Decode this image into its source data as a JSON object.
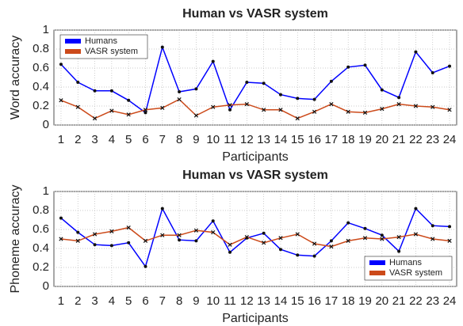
{
  "chart_data": [
    {
      "type": "line",
      "title": "Human vs VASR system",
      "xlabel": "Participants",
      "ylabel": "Word accuracy",
      "x": [
        1,
        2,
        3,
        4,
        5,
        6,
        7,
        8,
        9,
        10,
        11,
        12,
        13,
        14,
        15,
        16,
        17,
        18,
        19,
        20,
        21,
        22,
        23,
        24
      ],
      "xlim": [
        0.58,
        24.42
      ],
      "xticks": [
        1,
        2,
        3,
        4,
        5,
        6,
        7,
        8,
        9,
        10,
        11,
        12,
        13,
        14,
        15,
        16,
        17,
        18,
        19,
        20,
        21,
        22,
        23,
        24
      ],
      "ylim": [
        0,
        1
      ],
      "yticks": [
        0,
        0.2,
        0.4,
        0.6,
        0.8,
        1
      ],
      "grid": true,
      "legend": "upper left",
      "series": [
        {
          "name": "Humans",
          "color": "#0000ff",
          "values": [
            0.64,
            0.45,
            0.36,
            0.36,
            0.26,
            0.13,
            0.82,
            0.35,
            0.38,
            0.67,
            0.16,
            0.45,
            0.44,
            0.32,
            0.28,
            0.27,
            0.46,
            0.61,
            0.63,
            0.37,
            0.29,
            0.77,
            0.55,
            0.62
          ]
        },
        {
          "name": "VASR system",
          "color": "#cc4a1a",
          "values": [
            0.26,
            0.19,
            0.07,
            0.15,
            0.11,
            0.16,
            0.18,
            0.27,
            0.1,
            0.19,
            0.21,
            0.22,
            0.16,
            0.16,
            0.07,
            0.14,
            0.22,
            0.14,
            0.13,
            0.17,
            0.22,
            0.2,
            0.19,
            0.16
          ]
        }
      ]
    },
    {
      "type": "line",
      "title": "Human vs VASR system",
      "xlabel": "Participants",
      "ylabel": "Phoneme accuracy",
      "x": [
        1,
        2,
        3,
        4,
        5,
        6,
        7,
        8,
        9,
        10,
        11,
        12,
        13,
        14,
        15,
        16,
        17,
        18,
        19,
        20,
        21,
        22,
        23,
        24
      ],
      "xlim": [
        0.58,
        24.42
      ],
      "xticks": [
        1,
        2,
        3,
        4,
        5,
        6,
        7,
        8,
        9,
        10,
        11,
        12,
        13,
        14,
        15,
        16,
        17,
        18,
        19,
        20,
        21,
        22,
        23,
        24
      ],
      "ylim": [
        0,
        1
      ],
      "yticks": [
        0,
        0.2,
        0.4,
        0.6,
        0.8,
        1
      ],
      "grid": true,
      "legend": "lower right",
      "series": [
        {
          "name": "Humans",
          "color": "#0000ff",
          "values": [
            0.72,
            0.57,
            0.44,
            0.43,
            0.46,
            0.21,
            0.82,
            0.49,
            0.48,
            0.69,
            0.36,
            0.51,
            0.56,
            0.39,
            0.33,
            0.32,
            0.48,
            0.67,
            0.61,
            0.54,
            0.37,
            0.82,
            0.64,
            0.63
          ]
        },
        {
          "name": "VASR system",
          "color": "#cc4a1a",
          "values": [
            0.5,
            0.48,
            0.55,
            0.58,
            0.62,
            0.48,
            0.54,
            0.54,
            0.59,
            0.57,
            0.44,
            0.52,
            0.46,
            0.51,
            0.55,
            0.45,
            0.42,
            0.48,
            0.51,
            0.5,
            0.52,
            0.55,
            0.5,
            0.48
          ]
        }
      ]
    }
  ]
}
